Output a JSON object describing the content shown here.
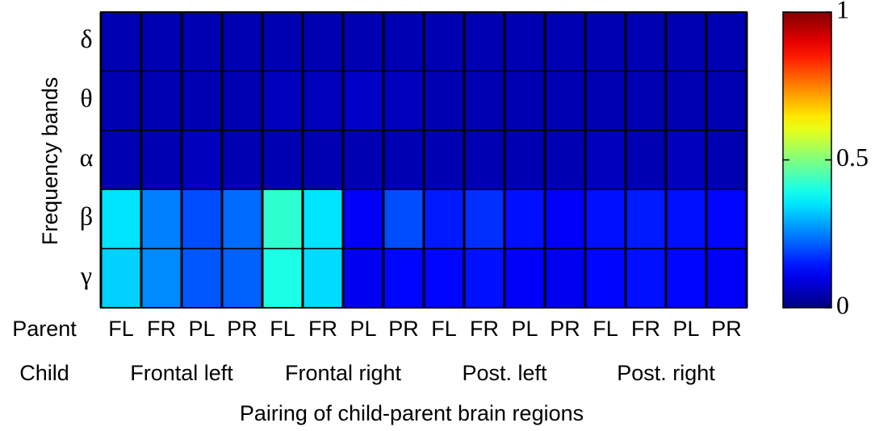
{
  "chart_data": {
    "type": "heatmap",
    "y_label": "Frequency bands",
    "x_label": "Pairing of child-parent brain regions",
    "rows": [
      "δ",
      "θ",
      "α",
      "β",
      "γ"
    ],
    "parent_label": "Parent",
    "columns": [
      "FL",
      "FR",
      "PL",
      "PR",
      "FL",
      "FR",
      "PL",
      "PR",
      "FL",
      "FR",
      "PL",
      "PR",
      "FL",
      "FR",
      "PL",
      "PR"
    ],
    "child_label": "Child",
    "groups": [
      "Frontal left",
      "Frontal right",
      "Post. left",
      "Post. right"
    ],
    "values": [
      [
        0.05,
        0.05,
        0.05,
        0.05,
        0.05,
        0.05,
        0.05,
        0.05,
        0.05,
        0.05,
        0.05,
        0.05,
        0.05,
        0.05,
        0.05,
        0.05
      ],
      [
        0.05,
        0.05,
        0.05,
        0.05,
        0.06,
        0.06,
        0.07,
        0.06,
        0.05,
        0.05,
        0.05,
        0.05,
        0.05,
        0.05,
        0.05,
        0.05
      ],
      [
        0.05,
        0.05,
        0.06,
        0.05,
        0.05,
        0.05,
        0.05,
        0.05,
        0.05,
        0.05,
        0.05,
        0.05,
        0.06,
        0.05,
        0.06,
        0.05
      ],
      [
        0.35,
        0.25,
        0.2,
        0.23,
        0.42,
        0.35,
        0.12,
        0.2,
        0.15,
        0.17,
        0.14,
        0.12,
        0.14,
        0.15,
        0.14,
        0.13
      ],
      [
        0.33,
        0.26,
        0.21,
        0.22,
        0.4,
        0.34,
        0.11,
        0.13,
        0.13,
        0.14,
        0.12,
        0.11,
        0.13,
        0.14,
        0.13,
        0.12
      ]
    ],
    "colormap": "jet",
    "zlim": [
      0,
      1
    ],
    "zticks": [
      0,
      0.5,
      1
    ]
  }
}
